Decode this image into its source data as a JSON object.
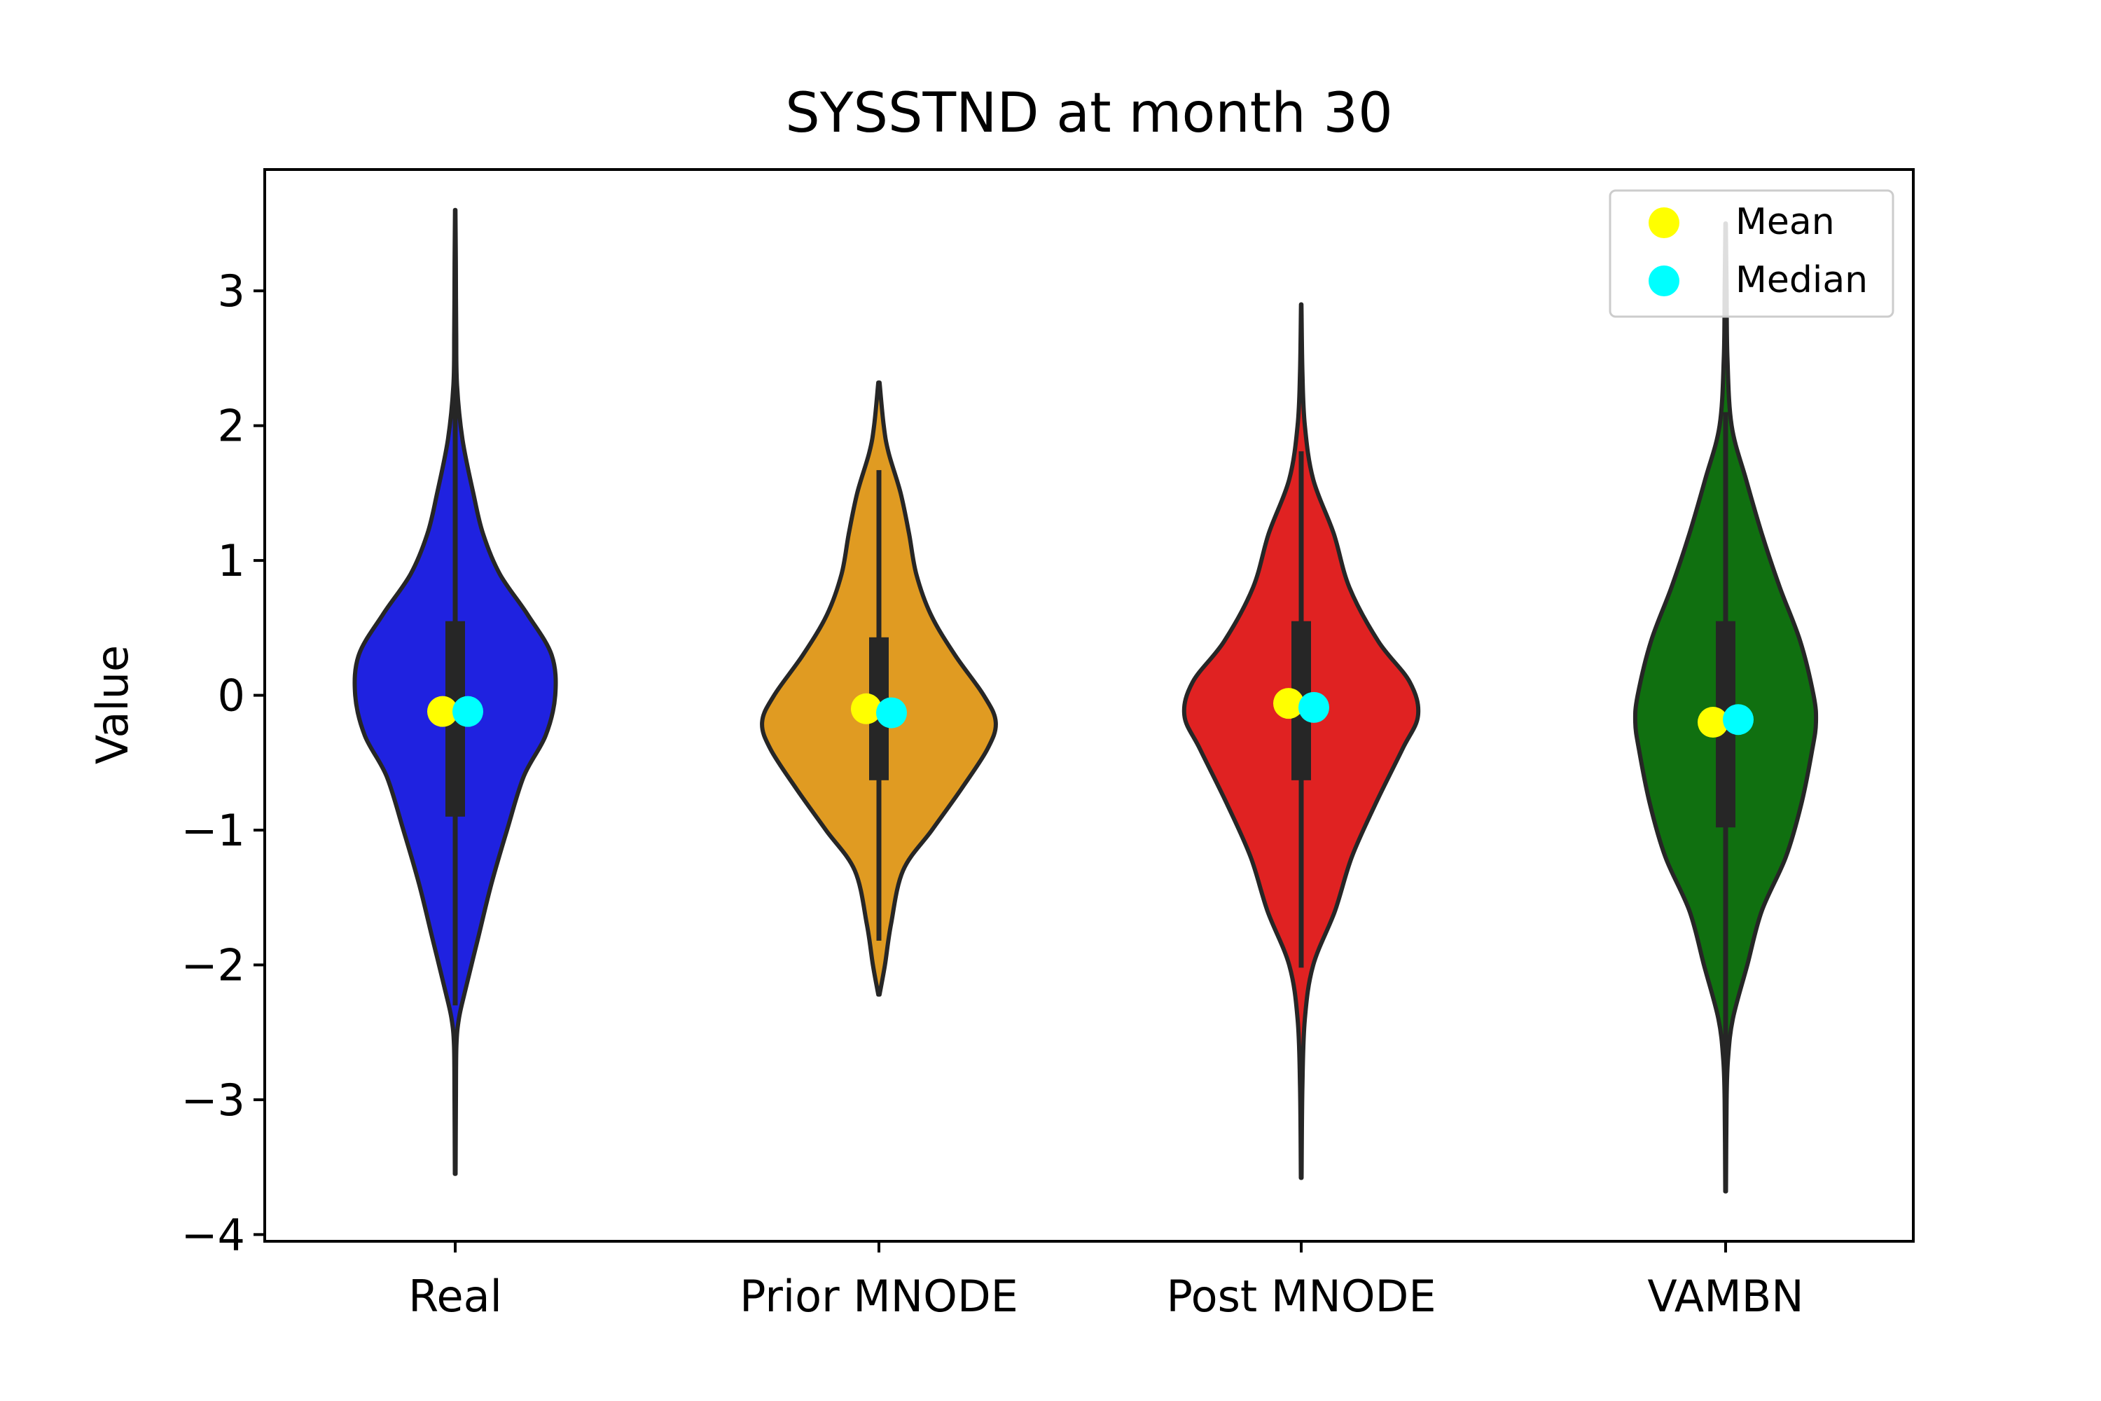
{
  "chart_data": {
    "type": "violin",
    "title": "SYSSTND at month 30",
    "xlabel": "",
    "ylabel": "Value",
    "ylim": [
      -4.05,
      3.9
    ],
    "yticks": [
      -4,
      -3,
      -2,
      -1,
      0,
      1,
      2,
      3
    ],
    "ytick_labels": [
      "−4",
      "−3",
      "−2",
      "−1",
      "0",
      "1",
      "2",
      "3"
    ],
    "categories": [
      "Real",
      "Prior MNODE",
      "Post MNODE",
      "VAMBN"
    ],
    "legend": {
      "placement": "top-right",
      "entries": [
        "Mean",
        "Median"
      ]
    },
    "mean_color": "#ffff00",
    "median_color": "#00ffff",
    "series": [
      {
        "category": "Real",
        "color": "#1f22e0",
        "min": -3.55,
        "max": 3.6,
        "q1": -0.9,
        "q3": 0.55,
        "whisker_low": -2.3,
        "whisker_high": 2.45,
        "mean": -0.12,
        "median": -0.12,
        "density": [
          [
            -3.55,
            0.003
          ],
          [
            -3.0,
            0.006
          ],
          [
            -2.6,
            0.01
          ],
          [
            -2.4,
            0.03
          ],
          [
            -2.2,
            0.08
          ],
          [
            -1.8,
            0.19
          ],
          [
            -1.4,
            0.3
          ],
          [
            -1.0,
            0.43
          ],
          [
            -0.6,
            0.57
          ],
          [
            -0.3,
            0.75
          ],
          [
            0.0,
            0.83
          ],
          [
            0.3,
            0.8
          ],
          [
            0.6,
            0.6
          ],
          [
            0.9,
            0.37
          ],
          [
            1.2,
            0.23
          ],
          [
            1.5,
            0.15
          ],
          [
            1.9,
            0.06
          ],
          [
            2.3,
            0.015
          ],
          [
            2.7,
            0.008
          ],
          [
            3.2,
            0.005
          ],
          [
            3.6,
            0.002
          ]
        ]
      },
      {
        "category": "Prior MNODE",
        "color": "#e09b22",
        "min": -2.22,
        "max": 2.32,
        "q1": -0.63,
        "q3": 0.43,
        "whisker_low": -1.82,
        "whisker_high": 1.67,
        "mean": -0.1,
        "median": -0.13,
        "density": [
          [
            -2.22,
            0.005
          ],
          [
            -2.0,
            0.05
          ],
          [
            -1.7,
            0.1
          ],
          [
            -1.3,
            0.2
          ],
          [
            -1.0,
            0.44
          ],
          [
            -0.7,
            0.68
          ],
          [
            -0.4,
            0.9
          ],
          [
            -0.2,
            0.97
          ],
          [
            0.0,
            0.87
          ],
          [
            0.3,
            0.63
          ],
          [
            0.6,
            0.43
          ],
          [
            0.9,
            0.31
          ],
          [
            1.2,
            0.25
          ],
          [
            1.5,
            0.18
          ],
          [
            1.8,
            0.08
          ],
          [
            2.0,
            0.04
          ],
          [
            2.32,
            0.005
          ]
        ]
      },
      {
        "category": "Post MNODE",
        "color": "#e02222",
        "min": -3.58,
        "max": 2.9,
        "q1": -0.63,
        "q3": 0.55,
        "whisker_low": -2.02,
        "whisker_high": 1.81,
        "mean": -0.06,
        "median": -0.09,
        "density": [
          [
            -3.58,
            0.003
          ],
          [
            -2.9,
            0.01
          ],
          [
            -2.4,
            0.03
          ],
          [
            -2.0,
            0.1
          ],
          [
            -1.6,
            0.28
          ],
          [
            -1.2,
            0.42
          ],
          [
            -0.8,
            0.62
          ],
          [
            -0.4,
            0.84
          ],
          [
            -0.15,
            0.97
          ],
          [
            0.1,
            0.9
          ],
          [
            0.4,
            0.64
          ],
          [
            0.8,
            0.4
          ],
          [
            1.2,
            0.27
          ],
          [
            1.6,
            0.1
          ],
          [
            2.0,
            0.03
          ],
          [
            2.4,
            0.01
          ],
          [
            2.9,
            0.002
          ]
        ]
      },
      {
        "category": "VAMBN",
        "color": "#107010",
        "min": -3.68,
        "max": 3.5,
        "q1": -0.98,
        "q3": 0.55,
        "whisker_low": -2.8,
        "whisker_high": 2.1,
        "mean": -0.2,
        "median": -0.18,
        "density": [
          [
            -3.68,
            0.003
          ],
          [
            -3.0,
            0.008
          ],
          [
            -2.7,
            0.02
          ],
          [
            -2.4,
            0.06
          ],
          [
            -2.0,
            0.18
          ],
          [
            -1.6,
            0.3
          ],
          [
            -1.2,
            0.5
          ],
          [
            -0.8,
            0.63
          ],
          [
            -0.4,
            0.72
          ],
          [
            -0.2,
            0.75
          ],
          [
            0.0,
            0.73
          ],
          [
            0.4,
            0.62
          ],
          [
            0.8,
            0.45
          ],
          [
            1.2,
            0.3
          ],
          [
            1.6,
            0.17
          ],
          [
            2.0,
            0.05
          ],
          [
            2.5,
            0.015
          ],
          [
            3.0,
            0.008
          ],
          [
            3.5,
            0.002
          ]
        ]
      }
    ]
  }
}
